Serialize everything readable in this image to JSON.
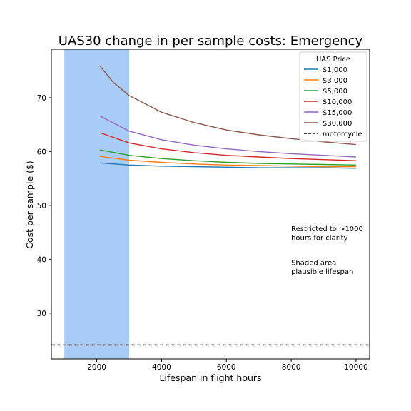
{
  "chart_data": {
    "type": "line",
    "title": "UAS30 change in per sample costs: Emergency",
    "xlabel": "Lifespan in flight hours",
    "ylabel": "Cost per sample ($)",
    "xlim": [
      600,
      10420
    ],
    "ylim": [
      21.5,
      79
    ],
    "xticks": [
      2000,
      4000,
      6000,
      8000,
      10000
    ],
    "yticks": [
      30,
      40,
      50,
      60,
      70
    ],
    "grid": false,
    "legend": {
      "title": "UAS Price",
      "placement": "top-right"
    },
    "shaded_region": {
      "x": [
        1000,
        3000
      ],
      "color": "#a8ccf5"
    },
    "annotations": [
      {
        "lines": [
          "Restricted to >1000",
          "hours for clarity"
        ],
        "x": 8000,
        "y": 45.2
      },
      {
        "lines": [
          "Shaded area",
          "plausible lifespan"
        ],
        "x": 8000,
        "y": 38.9
      }
    ],
    "series": [
      {
        "name": "$1,000",
        "color": "#1f77b4",
        "x": [
          2100,
          3000,
          4000,
          5000,
          6000,
          7000,
          8000,
          9000,
          10000
        ],
        "y": [
          57.9,
          57.5,
          57.3,
          57.2,
          57.1,
          57.0,
          57.0,
          57.0,
          56.9
        ]
      },
      {
        "name": "$3,000",
        "color": "#ff7f0e",
        "x": [
          2100,
          3000,
          4000,
          5000,
          6000,
          7000,
          8000,
          9000,
          10000
        ],
        "y": [
          59.1,
          58.4,
          58.0,
          57.7,
          57.5,
          57.4,
          57.3,
          57.2,
          57.2
        ]
      },
      {
        "name": "$5,000",
        "color": "#2ca02c",
        "x": [
          2100,
          3000,
          4000,
          5000,
          6000,
          7000,
          8000,
          9000,
          10000
        ],
        "y": [
          60.3,
          59.3,
          58.7,
          58.3,
          58.0,
          57.8,
          57.7,
          57.6,
          57.5
        ]
      },
      {
        "name": "$10,000",
        "color": "#d62728",
        "x": [
          2100,
          3000,
          4000,
          5000,
          6000,
          7000,
          8000,
          9000,
          10000
        ],
        "y": [
          63.5,
          61.6,
          60.5,
          59.8,
          59.3,
          59.0,
          58.7,
          58.5,
          58.3
        ]
      },
      {
        "name": "$15,000",
        "color": "#9467bd",
        "x": [
          2100,
          3000,
          4000,
          5000,
          6000,
          7000,
          8000,
          9000,
          10000
        ],
        "y": [
          66.6,
          63.8,
          62.2,
          61.2,
          60.5,
          60.0,
          59.6,
          59.3,
          59.0
        ]
      },
      {
        "name": "$30,000",
        "color": "#8c564b",
        "x": [
          2100,
          2500,
          3000,
          4000,
          5000,
          6000,
          7000,
          8000,
          9000,
          10000
        ],
        "y": [
          75.9,
          72.9,
          70.4,
          67.3,
          65.4,
          64.0,
          63.1,
          62.4,
          61.8,
          61.3
        ]
      },
      {
        "name": "motorcycle",
        "color": "#000000",
        "dashed": true,
        "x": [
          600,
          10420
        ],
        "y": [
          24.1,
          24.1
        ]
      }
    ]
  }
}
